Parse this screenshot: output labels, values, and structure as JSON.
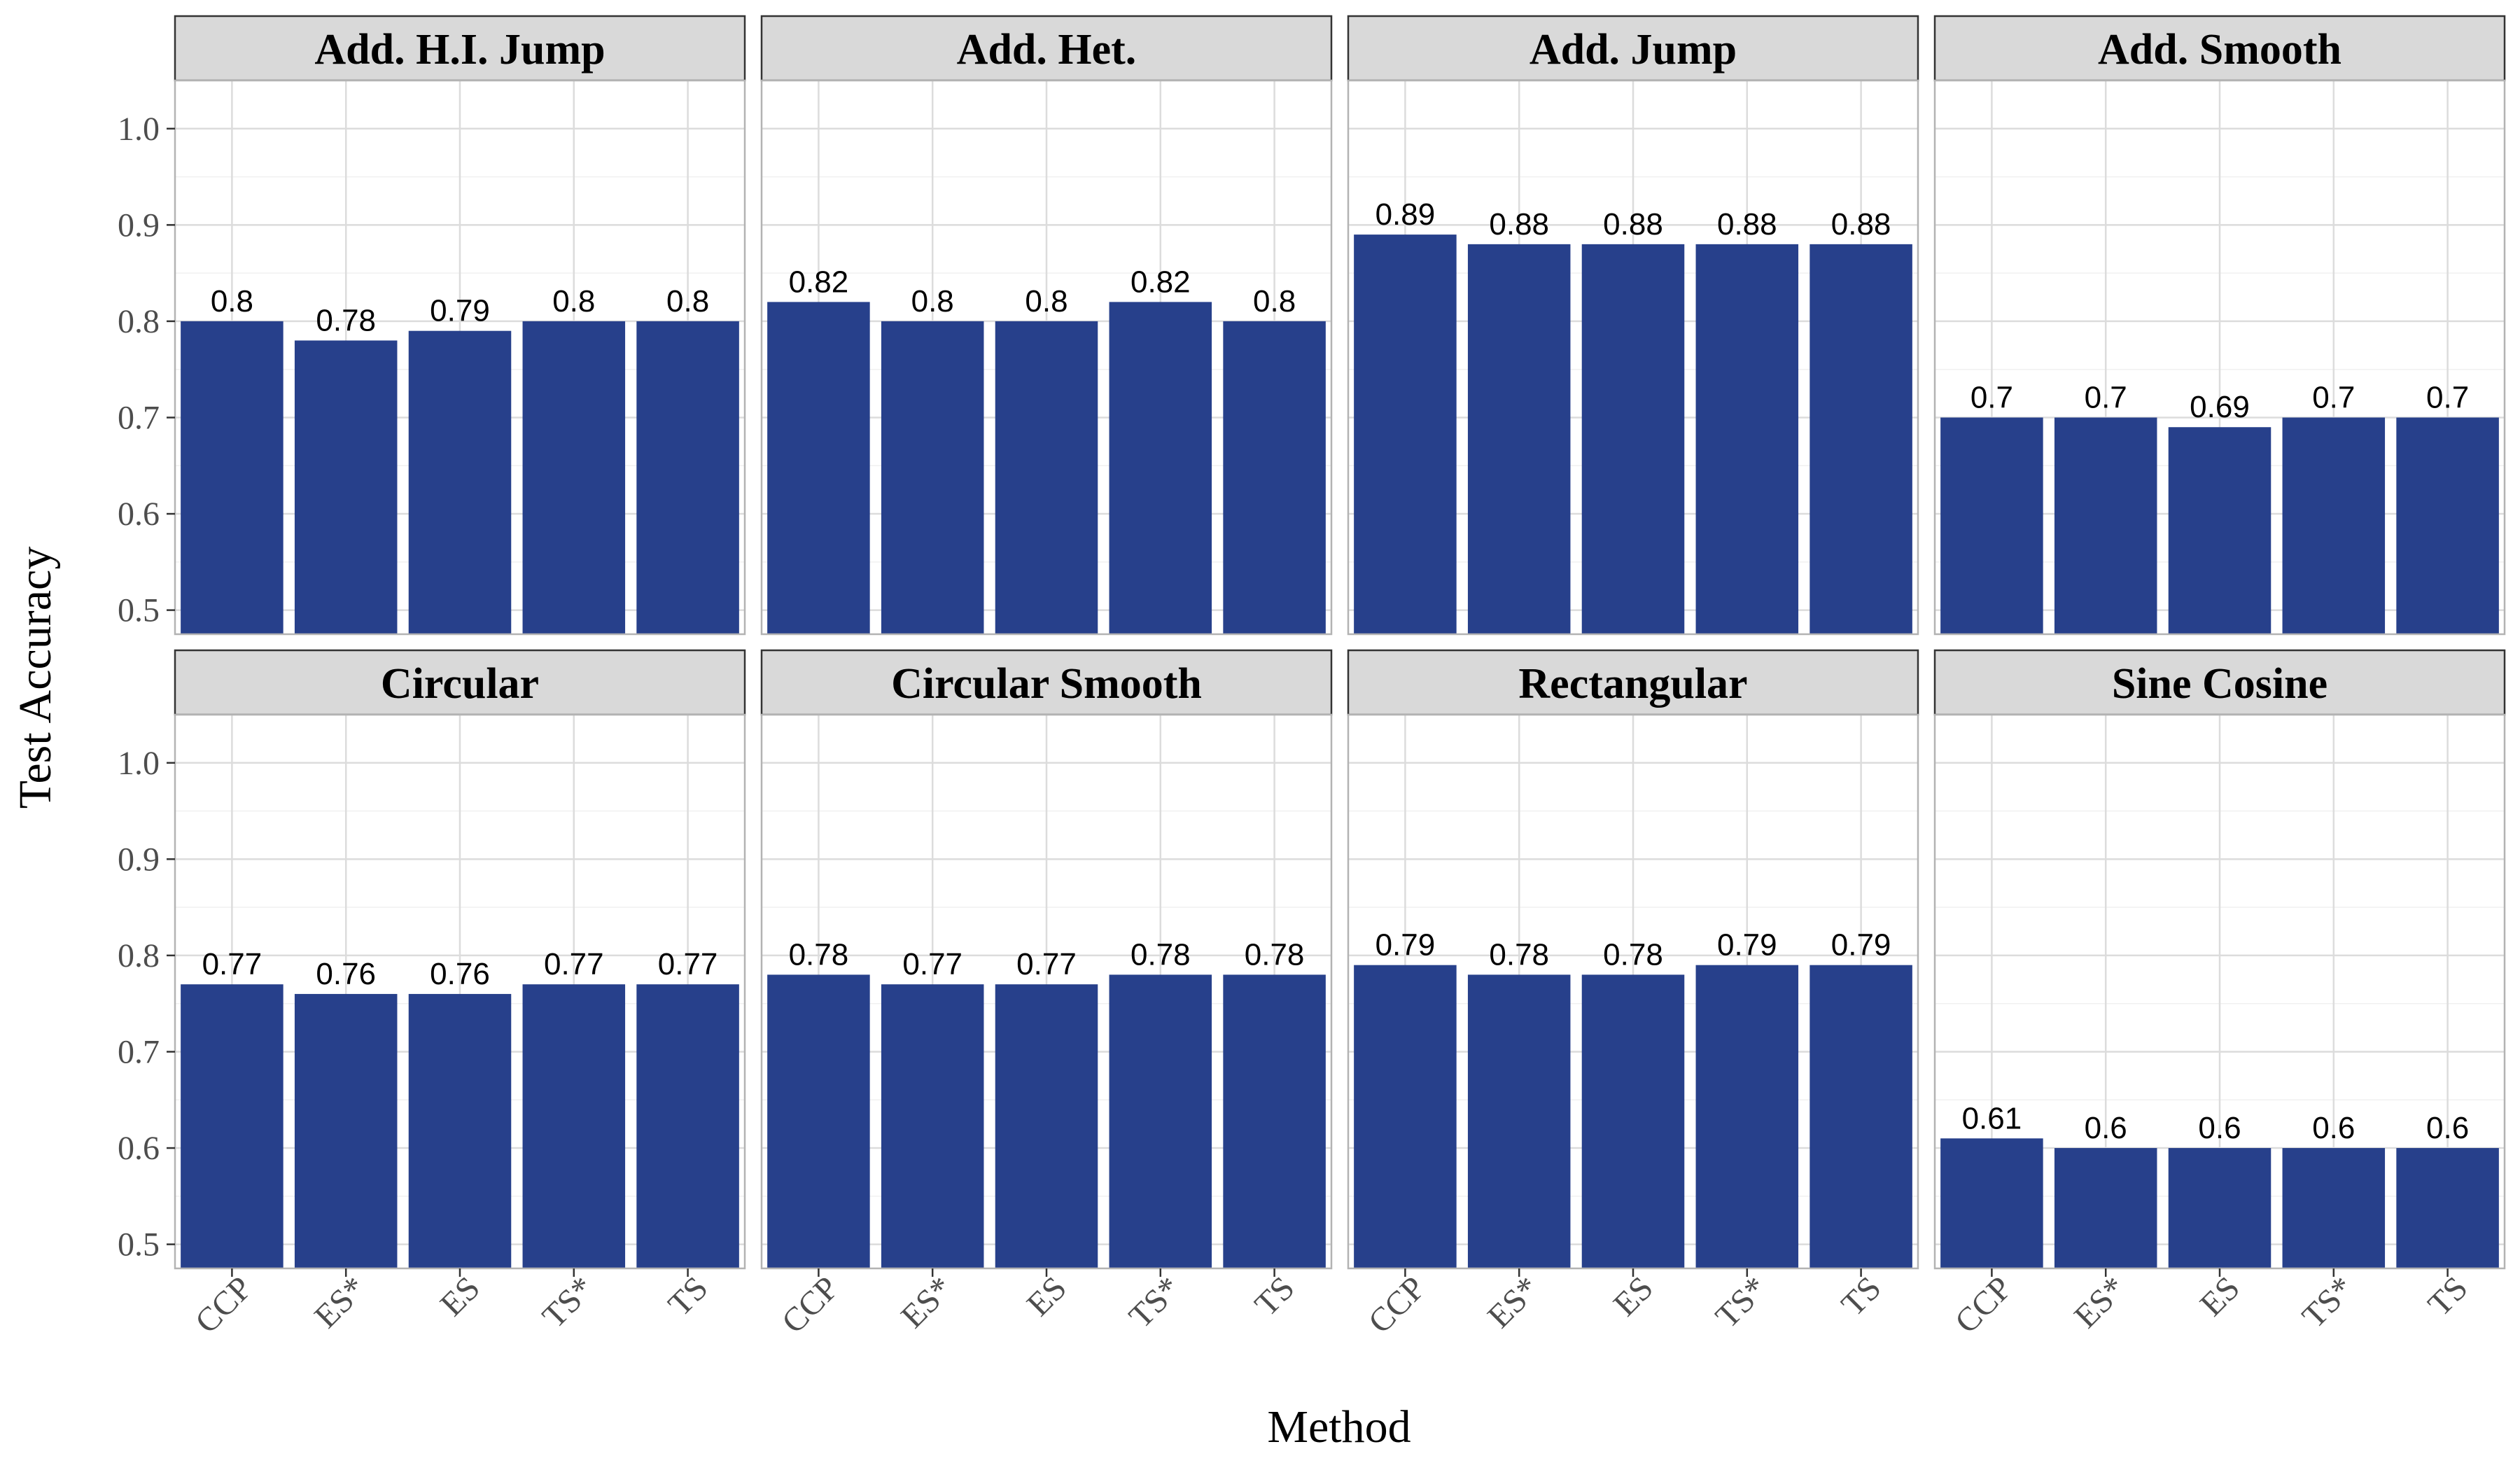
{
  "chart_data": {
    "type": "bar",
    "facet_layout": "2 rows x 4 columns",
    "xlabel": "Method",
    "ylabel": "Test Accuracy",
    "ylim": [
      0.475,
      1.05
    ],
    "yticks": [
      0.5,
      0.6,
      0.7,
      0.8,
      0.9,
      1.0
    ],
    "ytick_labels": [
      "0.5",
      "0.6",
      "0.7",
      "0.8",
      "0.9",
      "1.0"
    ],
    "categories": [
      "CCP",
      "ES*",
      "ES",
      "TS*",
      "TS"
    ],
    "bar_color": "#27408b",
    "grid": true,
    "panels": [
      {
        "title": "Add. H.I. Jump",
        "values": [
          0.8,
          0.78,
          0.79,
          0.8,
          0.8
        ],
        "labels": [
          "0.8",
          "0.78",
          "0.79",
          "0.8",
          "0.8"
        ]
      },
      {
        "title": "Add. Het.",
        "values": [
          0.82,
          0.8,
          0.8,
          0.82,
          0.8
        ],
        "labels": [
          "0.82",
          "0.8",
          "0.8",
          "0.82",
          "0.8"
        ]
      },
      {
        "title": "Add. Jump",
        "values": [
          0.89,
          0.88,
          0.88,
          0.88,
          0.88
        ],
        "labels": [
          "0.89",
          "0.88",
          "0.88",
          "0.88",
          "0.88"
        ]
      },
      {
        "title": "Add. Smooth",
        "values": [
          0.7,
          0.7,
          0.69,
          0.7,
          0.7
        ],
        "labels": [
          "0.7",
          "0.7",
          "0.69",
          "0.7",
          "0.7"
        ]
      },
      {
        "title": "Circular",
        "values": [
          0.77,
          0.76,
          0.76,
          0.77,
          0.77
        ],
        "labels": [
          "0.77",
          "0.76",
          "0.76",
          "0.77",
          "0.77"
        ]
      },
      {
        "title": "Circular Smooth",
        "values": [
          0.78,
          0.77,
          0.77,
          0.78,
          0.78
        ],
        "labels": [
          "0.78",
          "0.77",
          "0.77",
          "0.78",
          "0.78"
        ]
      },
      {
        "title": "Rectangular",
        "values": [
          0.79,
          0.78,
          0.78,
          0.79,
          0.79
        ],
        "labels": [
          "0.79",
          "0.78",
          "0.78",
          "0.79",
          "0.79"
        ]
      },
      {
        "title": "Sine Cosine",
        "values": [
          0.61,
          0.6,
          0.6,
          0.6,
          0.6
        ],
        "labels": [
          "0.61",
          "0.6",
          "0.6",
          "0.6",
          "0.6"
        ]
      }
    ]
  }
}
